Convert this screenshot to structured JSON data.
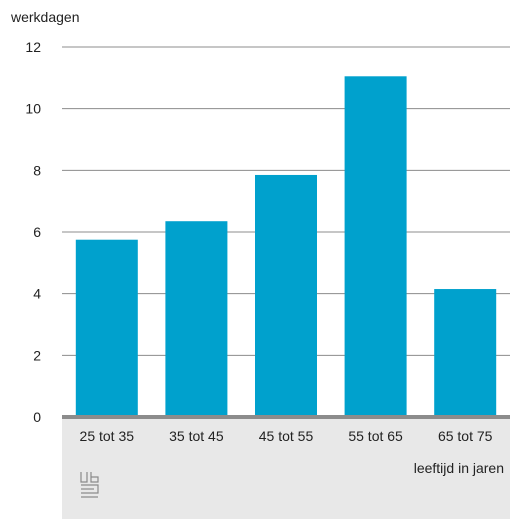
{
  "chart_data": {
    "type": "bar",
    "title": "",
    "ylabel": "werkdagen",
    "xlabel": "leeftijd in jaren",
    "categories": [
      "25 tot 35",
      "35 tot 45",
      "45 tot 55",
      "55 tot 65",
      "65 tot 75"
    ],
    "values": [
      5.75,
      6.35,
      7.85,
      11.05,
      4.15
    ],
    "ylim": [
      0,
      12
    ],
    "yticks": [
      0,
      2,
      4,
      6,
      8,
      10,
      12
    ],
    "grid": true,
    "legend": "none"
  },
  "colors": {
    "bar": "#00a1cd",
    "grid": "#8c8c8c",
    "axis": "#8c8c8c",
    "panel": "#e8e8e8",
    "logo": "#8a8a8a"
  },
  "logo": {
    "icon": "cbs-logo-icon"
  }
}
